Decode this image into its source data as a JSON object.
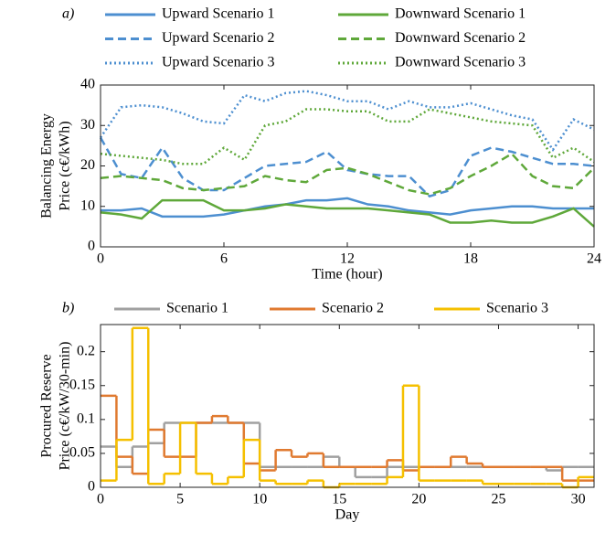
{
  "chart_data": [
    {
      "type": "line",
      "panel_label": "a)",
      "xlabel": "Time (hour)",
      "ylabel": [
        "Balancing Energy",
        "Price (c€/kWh)"
      ],
      "x": [
        0,
        1,
        2,
        3,
        4,
        5,
        6,
        7,
        8,
        9,
        10,
        11,
        12,
        13,
        14,
        15,
        16,
        17,
        18,
        19,
        20,
        21,
        22,
        23,
        24
      ],
      "xlim": [
        0,
        24
      ],
      "xticks": [
        0,
        6,
        12,
        18,
        24
      ],
      "ylim": [
        0,
        40
      ],
      "yticks": [
        0,
        10,
        20,
        30,
        40
      ],
      "legend_columns": 2,
      "series": [
        {
          "name": "Upward Scenario 1",
          "color": "#4d8fd0",
          "dash": "solid",
          "values": [
            9,
            9,
            9.5,
            7.5,
            7.5,
            7.5,
            8,
            9,
            10,
            10.5,
            11.5,
            11.5,
            12,
            10.5,
            10,
            9,
            8.5,
            8,
            9,
            9.5,
            10,
            10,
            9.5,
            9.5,
            9.5
          ]
        },
        {
          "name": "Upward Scenario 2",
          "color": "#4d8fd0",
          "dash": "dashed",
          "values": [
            27,
            18,
            17,
            24.5,
            17,
            14,
            14,
            17,
            20,
            20.5,
            21,
            23.5,
            19,
            18,
            17.5,
            17.5,
            12.5,
            14,
            22.5,
            24.5,
            23.5,
            22,
            20.5,
            20.5,
            20
          ]
        },
        {
          "name": "Upward Scenario 3",
          "color": "#4d8fd0",
          "dash": "dotted",
          "values": [
            27,
            34.5,
            35,
            34.5,
            33,
            31,
            30.5,
            37.5,
            36,
            38,
            38.5,
            37.5,
            36,
            36,
            34,
            36,
            34.5,
            34.5,
            35.5,
            34,
            32.5,
            31.5,
            24,
            31.5,
            29
          ]
        },
        {
          "name": "Downward Scenario 1",
          "color": "#5fa83a",
          "dash": "solid",
          "values": [
            8.5,
            8,
            7,
            11.5,
            11.5,
            11.5,
            9,
            9,
            9.5,
            10.5,
            10,
            9.5,
            9.5,
            9.5,
            9,
            8.5,
            8,
            6,
            6,
            6.5,
            6,
            6,
            7.5,
            9.5,
            5
          ]
        },
        {
          "name": "Downward Scenario 2",
          "color": "#5fa83a",
          "dash": "dashed",
          "values": [
            17,
            17.5,
            17,
            16.5,
            14.5,
            14,
            14.5,
            15,
            17.5,
            16.5,
            16,
            19,
            19.5,
            18,
            16,
            14,
            13,
            14.5,
            17.5,
            20,
            23,
            17.5,
            15,
            14.5,
            19.5
          ]
        },
        {
          "name": "Downward Scenario 3",
          "color": "#5fa83a",
          "dash": "dotted",
          "values": [
            23,
            22.5,
            22,
            21.5,
            20.5,
            20.5,
            24.5,
            21.5,
            30,
            31,
            34,
            34,
            33.5,
            33.5,
            31,
            31,
            34,
            33,
            32,
            31,
            30.5,
            30,
            22,
            24.5,
            21
          ]
        }
      ]
    },
    {
      "type": "step",
      "panel_label": "b)",
      "xlabel": "Day",
      "ylabel": [
        "Procured Reserve",
        "Price (c€/kW/30-min)"
      ],
      "x": [
        0,
        1,
        2,
        3,
        4,
        5,
        6,
        7,
        8,
        9,
        10,
        11,
        12,
        13,
        14,
        15,
        16,
        17,
        18,
        19,
        20,
        21,
        22,
        23,
        24,
        25,
        26,
        27,
        28,
        29,
        30
      ],
      "xlim": [
        0,
        31
      ],
      "xticks": [
        0,
        5,
        10,
        15,
        20,
        25,
        30
      ],
      "ylim": [
        0,
        0.24
      ],
      "yticks": [
        0,
        0.05,
        0.1,
        0.15,
        0.2
      ],
      "legend_columns": 3,
      "series": [
        {
          "name": "Scenario 1",
          "color": "#a0a0a0",
          "dash": "solid",
          "values": [
            0.06,
            0.03,
            0.06,
            0.065,
            0.095,
            0.095,
            0.095,
            0.095,
            0.095,
            0.095,
            0.03,
            0.03,
            0.03,
            0.03,
            0.045,
            0.03,
            0.015,
            0.015,
            0.03,
            0.03,
            0.03,
            0.03,
            0.03,
            0.03,
            0.03,
            0.03,
            0.03,
            0.03,
            0.025,
            0.03,
            0.03
          ]
        },
        {
          "name": "Scenario 2",
          "color": "#e07a30",
          "dash": "solid",
          "values": [
            0.135,
            0.045,
            0.02,
            0.085,
            0.045,
            0.045,
            0.095,
            0.105,
            0.095,
            0.035,
            0.025,
            0.055,
            0.045,
            0.05,
            0.03,
            0.03,
            0.03,
            0.03,
            0.04,
            0.025,
            0.03,
            0.03,
            0.045,
            0.035,
            0.03,
            0.03,
            0.03,
            0.03,
            0.03,
            0.01,
            0.01
          ]
        },
        {
          "name": "Scenario 3",
          "color": "#f5c000",
          "dash": "solid",
          "values": [
            0.01,
            0.07,
            0.235,
            0.005,
            0.02,
            0.095,
            0.02,
            0.005,
            0.015,
            0.07,
            0.01,
            0.005,
            0.005,
            0.01,
            0,
            0.005,
            0.005,
            0.005,
            0.015,
            0.15,
            0.01,
            0.01,
            0.01,
            0.01,
            0.005,
            0.005,
            0.005,
            0.005,
            0.005,
            0,
            0.015
          ]
        }
      ]
    }
  ]
}
